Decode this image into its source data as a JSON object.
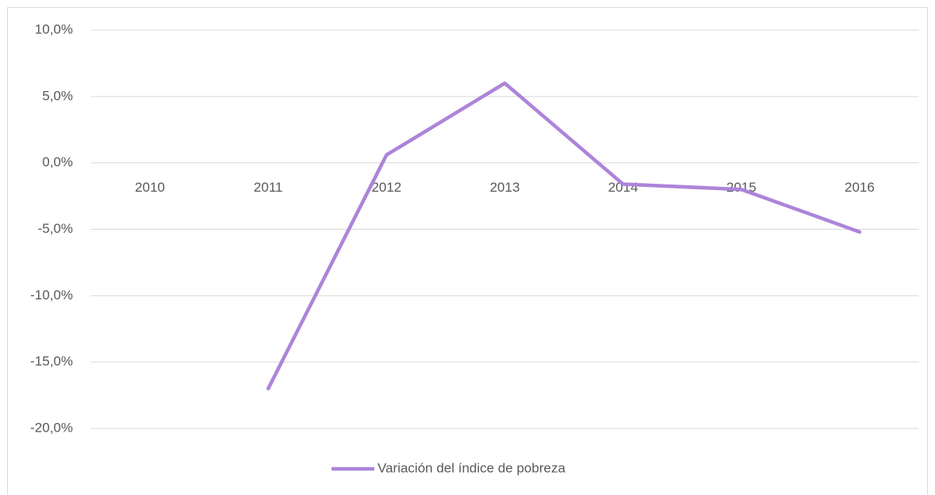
{
  "chart_data": {
    "type": "line",
    "categories": [
      "2010",
      "2011",
      "2012",
      "2013",
      "2014",
      "2015",
      "2016"
    ],
    "series": [
      {
        "name": "Variación del índice de pobreza",
        "color": "#ad84d9",
        "values": [
          null,
          -17.0,
          0.6,
          6.0,
          -1.6,
          -2.0,
          -5.2
        ]
      }
    ],
    "ylim": [
      -20,
      10
    ],
    "yticks": [
      {
        "value": -20,
        "label": "-20,0%"
      },
      {
        "value": -15,
        "label": "-15,0%"
      },
      {
        "value": -10,
        "label": "-10,0%"
      },
      {
        "value": -5,
        "label": "-5,0%"
      },
      {
        "value": 0,
        "label": "0,0%"
      },
      {
        "value": 5,
        "label": "5,0%"
      },
      {
        "value": 10,
        "label": "10,0%"
      }
    ],
    "grid": true,
    "legend": "bottom"
  }
}
